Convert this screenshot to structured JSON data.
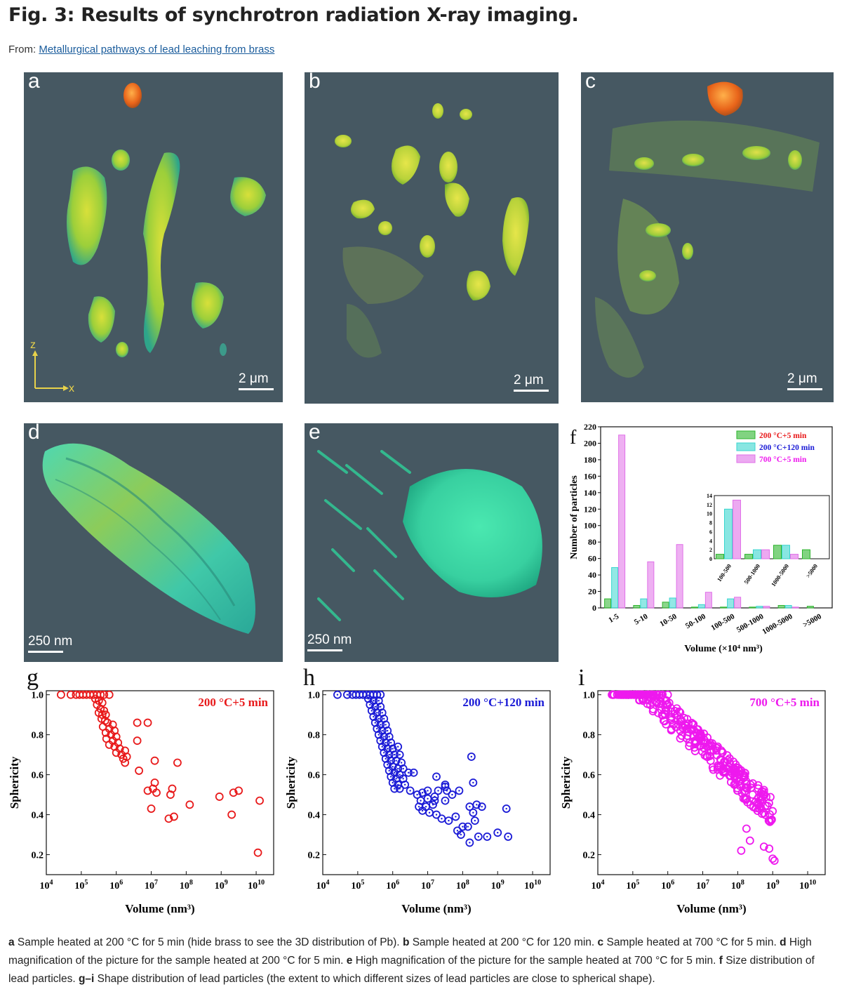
{
  "title": "Fig. 3: Results of synchrotron radiation X-ray imaging.",
  "from_label": "From:",
  "from_link": "Metallurgical pathways of lead leaching from brass",
  "panels": {
    "a": {
      "label": "a",
      "scale": "2 μm",
      "axis_z": "z",
      "axis_x": "x"
    },
    "b": {
      "label": "b",
      "scale": "2 μm"
    },
    "c": {
      "label": "c",
      "scale": "2 μm"
    },
    "d": {
      "label": "d",
      "scale": "250 nm"
    },
    "e": {
      "label": "e",
      "scale": "250 nm"
    },
    "f": {
      "label": "f"
    },
    "g": {
      "label": "g"
    },
    "h": {
      "label": "h"
    },
    "i": {
      "label": "i"
    }
  },
  "colors": {
    "panel_bg": "#465862",
    "green_series": "#2db52d",
    "cyan_series": "#38d6cf",
    "magenta_series": "#e070e8",
    "red_series": "#e8191a",
    "blue_series": "#1a1ad6",
    "pink_series": "#ee19ee"
  },
  "chart_data": [
    {
      "id": "f",
      "type": "bar",
      "xlabel": "Volume (×10⁴ nm³)",
      "ylabel": "Number of particles",
      "ylim": [
        0,
        220
      ],
      "yticks": [
        0,
        20,
        40,
        60,
        80,
        100,
        120,
        140,
        160,
        180,
        200,
        220
      ],
      "categories": [
        "1-5",
        "5-10",
        "10-50",
        "50-100",
        "100-500",
        "500-1000",
        "1000-5000",
        ">5000"
      ],
      "legend_position": "top-right",
      "series": [
        {
          "name": "200 °C+5 min",
          "values": [
            11,
            3,
            7,
            1,
            1,
            1,
            3,
            2
          ]
        },
        {
          "name": "200 °C+120 min",
          "values": [
            49,
            11,
            12,
            4,
            11,
            2,
            3,
            0
          ]
        },
        {
          "name": "700 °C+5 min",
          "values": [
            210,
            56,
            77,
            19,
            13,
            2,
            1,
            0
          ]
        }
      ],
      "inset": {
        "categories": [
          "100-500",
          "500-1000",
          "1000-5000",
          ">5000"
        ],
        "ylim": [
          0,
          14
        ],
        "yticks": [
          0,
          2,
          4,
          6,
          8,
          10,
          12,
          14
        ],
        "series": [
          {
            "name": "200 °C+5 min",
            "values": [
              1,
              1,
              3,
              2
            ]
          },
          {
            "name": "200 °C+120 min",
            "values": [
              11,
              2,
              3,
              0
            ]
          },
          {
            "name": "700 °C+5 min",
            "values": [
              13,
              2,
              1,
              0
            ]
          }
        ]
      }
    },
    {
      "id": "g",
      "type": "scatter",
      "annotation": "200 °C+5 min",
      "xlabel": "Volume (nm³)",
      "ylabel": "Sphericity",
      "xscale": "log",
      "xlim_exp": [
        4,
        10.5
      ],
      "ylim": [
        0.1,
        1.02
      ],
      "yticks": [
        "0.2",
        "0.4",
        "0.6",
        "0.8",
        "1.0"
      ],
      "xticks_exp": [
        "4",
        "5",
        "6",
        "7",
        "8",
        "9",
        "10"
      ],
      "points": [
        [
          4.42,
          1.0
        ],
        [
          4.7,
          1.0
        ],
        [
          4.85,
          1.0
        ],
        [
          4.95,
          1.0
        ],
        [
          5.05,
          1.0
        ],
        [
          5.15,
          1.0
        ],
        [
          5.25,
          1.0
        ],
        [
          5.35,
          1.0
        ],
        [
          5.45,
          1.0
        ],
        [
          5.55,
          1.0
        ],
        [
          5.65,
          1.0
        ],
        [
          5.8,
          1.0
        ],
        [
          5.4,
          0.98
        ],
        [
          5.5,
          0.97
        ],
        [
          5.6,
          0.96
        ],
        [
          5.45,
          0.95
        ],
        [
          5.55,
          0.93
        ],
        [
          5.65,
          0.92
        ],
        [
          5.5,
          0.91
        ],
        [
          5.6,
          0.9
        ],
        [
          5.7,
          0.9
        ],
        [
          5.58,
          0.88
        ],
        [
          5.68,
          0.87
        ],
        [
          5.75,
          0.86
        ],
        [
          5.9,
          0.85
        ],
        [
          5.62,
          0.84
        ],
        [
          5.8,
          0.83
        ],
        [
          5.95,
          0.82
        ],
        [
          5.7,
          0.81
        ],
        [
          5.85,
          0.8
        ],
        [
          6.0,
          0.79
        ],
        [
          5.72,
          0.78
        ],
        [
          5.9,
          0.77
        ],
        [
          6.05,
          0.76
        ],
        [
          5.8,
          0.75
        ],
        [
          5.95,
          0.74
        ],
        [
          6.1,
          0.73
        ],
        [
          6.25,
          0.72
        ],
        [
          6.0,
          0.71
        ],
        [
          6.15,
          0.7
        ],
        [
          6.3,
          0.69
        ],
        [
          6.2,
          0.68
        ],
        [
          6.25,
          0.66
        ],
        [
          6.6,
          0.86
        ],
        [
          6.9,
          0.86
        ],
        [
          6.6,
          0.77
        ],
        [
          7.1,
          0.67
        ],
        [
          7.75,
          0.66
        ],
        [
          6.65,
          0.62
        ],
        [
          7.1,
          0.56
        ],
        [
          7.05,
          0.53
        ],
        [
          6.9,
          0.52
        ],
        [
          7.15,
          0.51
        ],
        [
          7.6,
          0.53
        ],
        [
          7.55,
          0.5
        ],
        [
          7.0,
          0.43
        ],
        [
          8.1,
          0.45
        ],
        [
          7.65,
          0.39
        ],
        [
          7.5,
          0.38
        ],
        [
          8.95,
          0.49
        ],
        [
          9.35,
          0.51
        ],
        [
          9.5,
          0.52
        ],
        [
          9.3,
          0.4
        ],
        [
          10.1,
          0.47
        ],
        [
          10.05,
          0.21
        ]
      ]
    },
    {
      "id": "h",
      "type": "scatter",
      "annotation": "200 °C+120 min",
      "xlabel": "Volume (nm³)",
      "ylabel": "Sphericity",
      "xscale": "log",
      "xlim_exp": [
        4,
        10.5
      ],
      "ylim": [
        0.1,
        1.02
      ],
      "yticks": [
        "0.2",
        "0.4",
        "0.6",
        "0.8",
        "1.0"
      ],
      "xticks_exp": [
        "4",
        "5",
        "6",
        "7",
        "8",
        "9",
        "10"
      ],
      "points": [
        [
          4.42,
          1.0
        ],
        [
          4.7,
          1.0
        ],
        [
          4.85,
          1.0
        ],
        [
          4.95,
          1.0
        ],
        [
          5.05,
          1.0
        ],
        [
          5.15,
          1.0
        ],
        [
          5.25,
          1.0
        ],
        [
          5.35,
          1.0
        ],
        [
          5.45,
          1.0
        ],
        [
          5.55,
          1.0
        ],
        [
          5.65,
          1.0
        ],
        [
          5.3,
          0.98
        ],
        [
          5.45,
          0.97
        ],
        [
          5.6,
          0.97
        ],
        [
          5.35,
          0.95
        ],
        [
          5.5,
          0.94
        ],
        [
          5.65,
          0.94
        ],
        [
          5.4,
          0.92
        ],
        [
          5.55,
          0.91
        ],
        [
          5.7,
          0.91
        ],
        [
          5.45,
          0.89
        ],
        [
          5.6,
          0.88
        ],
        [
          5.75,
          0.88
        ],
        [
          5.5,
          0.86
        ],
        [
          5.65,
          0.85
        ],
        [
          5.8,
          0.85
        ],
        [
          5.55,
          0.83
        ],
        [
          5.7,
          0.82
        ],
        [
          5.85,
          0.82
        ],
        [
          5.6,
          0.8
        ],
        [
          5.75,
          0.79
        ],
        [
          5.9,
          0.79
        ],
        [
          5.65,
          0.77
        ],
        [
          5.8,
          0.76
        ],
        [
          5.95,
          0.76
        ],
        [
          5.7,
          0.74
        ],
        [
          5.85,
          0.73
        ],
        [
          6.0,
          0.73
        ],
        [
          6.15,
          0.74
        ],
        [
          5.75,
          0.71
        ],
        [
          5.9,
          0.7
        ],
        [
          6.05,
          0.7
        ],
        [
          6.2,
          0.7
        ],
        [
          5.8,
          0.68
        ],
        [
          5.95,
          0.67
        ],
        [
          6.1,
          0.67
        ],
        [
          6.25,
          0.66
        ],
        [
          5.85,
          0.65
        ],
        [
          6.0,
          0.64
        ],
        [
          6.15,
          0.63
        ],
        [
          6.3,
          0.63
        ],
        [
          5.9,
          0.62
        ],
        [
          6.05,
          0.61
        ],
        [
          6.2,
          0.6
        ],
        [
          6.45,
          0.61
        ],
        [
          6.6,
          0.61
        ],
        [
          5.95,
          0.59
        ],
        [
          6.1,
          0.58
        ],
        [
          6.3,
          0.58
        ],
        [
          6.0,
          0.56
        ],
        [
          6.15,
          0.55
        ],
        [
          6.35,
          0.55
        ],
        [
          6.05,
          0.53
        ],
        [
          6.2,
          0.53
        ],
        [
          6.5,
          0.52
        ],
        [
          6.7,
          0.5
        ],
        [
          6.85,
          0.51
        ],
        [
          7.0,
          0.52
        ],
        [
          7.3,
          0.52
        ],
        [
          7.55,
          0.52
        ],
        [
          7.7,
          0.5
        ],
        [
          6.8,
          0.47
        ],
        [
          7.0,
          0.48
        ],
        [
          7.2,
          0.47
        ],
        [
          7.5,
          0.47
        ],
        [
          6.75,
          0.44
        ],
        [
          6.95,
          0.44
        ],
        [
          7.15,
          0.45
        ],
        [
          6.85,
          0.42
        ],
        [
          7.05,
          0.41
        ],
        [
          7.25,
          0.4
        ],
        [
          7.4,
          0.38
        ],
        [
          7.6,
          0.37
        ],
        [
          7.2,
          0.49
        ],
        [
          7.5,
          0.55
        ],
        [
          7.5,
          0.54
        ],
        [
          7.9,
          0.52
        ],
        [
          8.3,
          0.56
        ],
        [
          8.4,
          0.45
        ],
        [
          8.2,
          0.44
        ],
        [
          8.3,
          0.41
        ],
        [
          8.35,
          0.37
        ],
        [
          8.55,
          0.44
        ],
        [
          7.8,
          0.39
        ],
        [
          8.0,
          0.34
        ],
        [
          7.85,
          0.32
        ],
        [
          7.95,
          0.3
        ],
        [
          8.2,
          0.26
        ],
        [
          8.45,
          0.29
        ],
        [
          8.7,
          0.29
        ],
        [
          9.0,
          0.31
        ],
        [
          9.3,
          0.29
        ],
        [
          8.25,
          0.69
        ],
        [
          9.25,
          0.43
        ],
        [
          7.25,
          0.59
        ],
        [
          8.15,
          0.34
        ]
      ]
    },
    {
      "id": "i",
      "type": "scatter",
      "annotation": "700 °C+5 min",
      "xlabel": "Volume (nm³)",
      "ylabel": "Sphericity",
      "xscale": "log",
      "xlim_exp": [
        4,
        10.5
      ],
      "ylim": [
        0.1,
        1.02
      ],
      "yticks": [
        "0.2",
        "0.4",
        "0.6",
        "0.8",
        "1.0"
      ],
      "xticks_exp": [
        "4",
        "5",
        "6",
        "7",
        "8",
        "9",
        "10"
      ],
      "points_model": {
        "count": 340,
        "seed": 7,
        "x_range_exp": [
          4.4,
          9.0
        ],
        "slope": -0.165,
        "intercept_at_x5_5": 0.99,
        "spread": 0.07,
        "extra": [
          [
            4.42,
            1.0
          ],
          [
            4.65,
            1.0
          ],
          [
            4.8,
            1.0
          ],
          [
            4.95,
            1.0
          ],
          [
            5.1,
            1.0
          ],
          [
            5.25,
            1.0
          ],
          [
            5.4,
            1.0
          ],
          [
            5.55,
            1.0
          ],
          [
            5.7,
            1.0
          ],
          [
            5.85,
            1.0
          ],
          [
            6.0,
            1.0
          ],
          [
            8.25,
            0.33
          ],
          [
            8.35,
            0.27
          ],
          [
            8.75,
            0.24
          ],
          [
            8.9,
            0.23
          ],
          [
            9.0,
            0.18
          ],
          [
            9.05,
            0.17
          ],
          [
            8.1,
            0.22
          ],
          [
            8.0,
            0.52
          ],
          [
            7.9,
            0.55
          ]
        ]
      }
    }
  ],
  "caption": {
    "a_key": "a",
    "a_text": " Sample heated at 200 °C for 5 min (hide brass to see the 3D distribution of Pb). ",
    "b_key": "b",
    "b_text": " Sample heated at 200 °C for 120 min. ",
    "c_key": "c",
    "c_text": " Sample heated at 700 °C for 5 min. ",
    "d_key": "d",
    "d_text": " High magnification of the picture for the sample heated at 200 °C for 5 min. ",
    "e_key": "e",
    "e_text": " High magnification of the picture for the sample heated at 700 °C for 5 min. ",
    "f_key": "f",
    "f_text": " Size distribution of lead particles. ",
    "gi_key": "g–i",
    "gi_text": " Shape distribution of lead particles (the extent to which different sizes of lead particles are close to spherical shape)."
  }
}
